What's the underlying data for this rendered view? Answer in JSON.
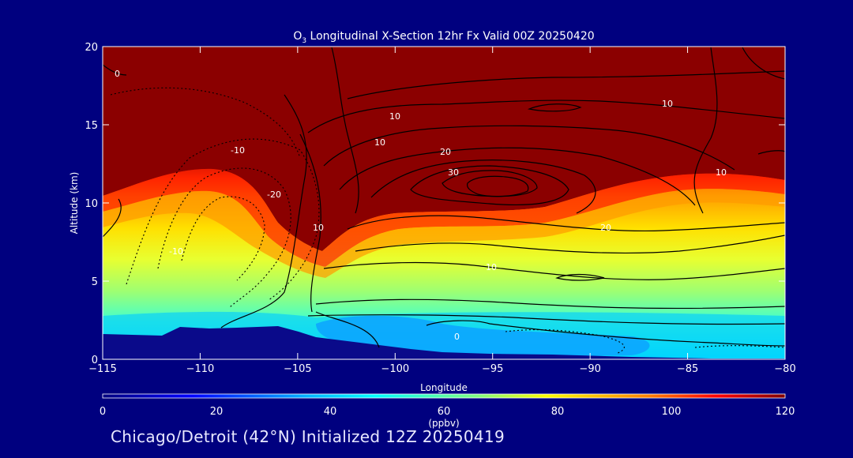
{
  "chart_data": {
    "type": "heatmap",
    "title_main": "3",
    "title_sub_prefix": "O",
    "title_rest": " Longitudinal X-Section 12hr  Fx Valid 00Z 20250420",
    "title_sub": "3",
    "xlabel": "Longitude",
    "ylabel": "Altitude (km)",
    "xlim": [
      -115,
      -80
    ],
    "ylim": [
      0,
      20
    ],
    "x_ticks": [
      -115,
      -110,
      -105,
      -100,
      -95,
      -90,
      -85,
      -80
    ],
    "y_ticks": [
      0,
      5,
      10,
      15,
      20
    ],
    "colorbar": {
      "label": "(ppbv)",
      "range": [
        0,
        120
      ],
      "ticks": [
        0,
        20,
        40,
        60,
        80,
        100,
        120
      ]
    },
    "contour_labels": [
      "0",
      "10",
      "10",
      "10",
      "-10",
      "-20",
      "-10",
      "10",
      "20",
      "30",
      "20",
      "10",
      "10",
      "0"
    ],
    "layers": [
      {
        "altitude_km": "0-1",
        "ozone_ppbv_approx": 30
      },
      {
        "altitude_km": "1-3",
        "ozone_ppbv_approx": 45
      },
      {
        "altitude_km": "3-6",
        "ozone_ppbv_approx": 65
      },
      {
        "altitude_km": "6-8",
        "ozone_ppbv_approx": 80
      },
      {
        "altitude_km": "8-11",
        "ozone_ppbv_approx": 95
      },
      {
        "altitude_km": "11-20",
        "ozone_ppbv_approx": 120
      }
    ]
  },
  "footer": "Chicago/Detroit (42°N) Initialized 12Z 20250419",
  "colors": {
    "background": "#00007f",
    "stratosphere": "#8b0000",
    "terrain": "#0a0a8a",
    "contour": "#000000"
  }
}
